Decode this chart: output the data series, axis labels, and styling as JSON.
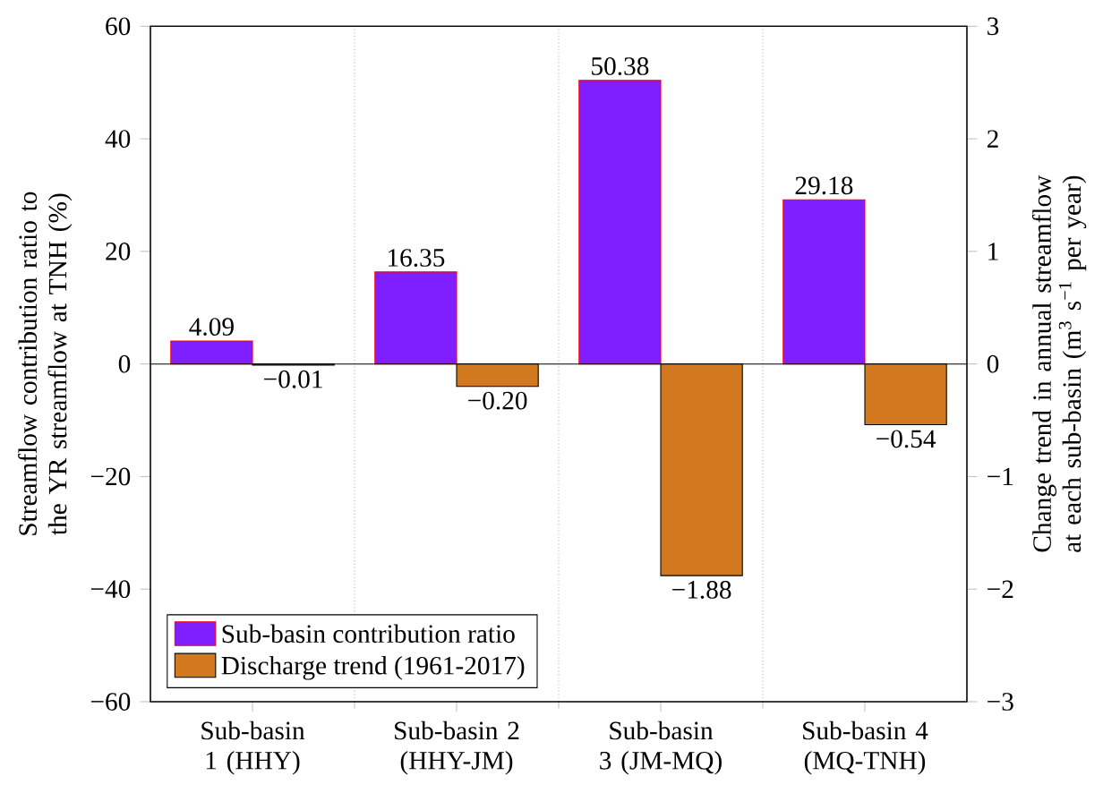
{
  "chart_data": {
    "type": "bar",
    "ylabel": "Streamflow contribution ratio to the YR streamflow at TNH (%)",
    "y2label": "Change trend in annual streamflow at each sub-basin (m$^{3}$ s$^{−1}$ per year)",
    "categories": [
      "Sub-basin 1 (HHY)",
      "Sub-basin 2 (HHY-JM)",
      "Sub-basin 3 (JM-MQ)",
      "Sub-basin 4 (MQ-TNH)"
    ],
    "series": [
      {
        "name": "Sub-basin contribution ratio",
        "color": "#7f1fff",
        "values": [
          4.09,
          16.35,
          50.38,
          29.18
        ],
        "value_labels": [
          "4.09",
          "16.35",
          "50.38",
          "29.18"
        ]
      },
      {
        "name": "Discharge trend (1961-2017)",
        "color": "#d2781e",
        "axis": "y2",
        "values": [
          -0.01,
          -0.2,
          -1.88,
          -0.54
        ],
        "value_labels": [
          "−0.01",
          "−0.20",
          "−1.88",
          "−0.54"
        ]
      }
    ],
    "ylim": [
      -60,
      60
    ],
    "yticks": [
      {
        "value": -60,
        "label": "−60"
      },
      {
        "value": -40,
        "label": "−40"
      },
      {
        "value": -20,
        "label": "−20"
      },
      0,
      20,
      40,
      60
    ],
    "y2lim": [
      -3,
      3
    ],
    "y2ticks": [
      {
        "value": -3,
        "label": "−3"
      },
      {
        "value": -2,
        "label": "−2"
      },
      {
        "value": -1,
        "label": "−1"
      },
      0,
      1,
      2,
      3
    ],
    "ref_lines": [
      {
        "axis": "y",
        "value": 0,
        "color": "#000000"
      }
    ],
    "grid": "x",
    "legend": "bottom left"
  }
}
